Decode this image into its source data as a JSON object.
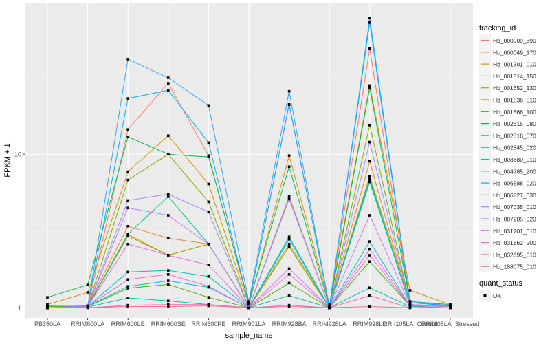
{
  "chart_data": {
    "type": "line",
    "title": "",
    "xlabel": "sample_name",
    "ylabel": "FPKM + 1",
    "yscale": "log10",
    "ylim": [
      0.86,
      97
    ],
    "yticks": [
      1,
      10
    ],
    "ytick_labels": [
      "1",
      "10"
    ],
    "grid": true,
    "legend_position": "right",
    "categories": [
      "PB350LA",
      "RRIM600LA",
      "RRIM600LE",
      "RRIM600SE",
      "RRIM600PE",
      "RRIM901LA",
      "RRIM928BA",
      "RRIM928LA",
      "RRIM928LE",
      "RRII105LA_Control",
      "RRII105LA_Stressed"
    ],
    "legend_title": "tracking_id",
    "shape_legend_title": "quant_status",
    "shape_legend_items": [
      "OK"
    ],
    "series": [
      {
        "name": "Hb_000009_390",
        "color": "#F8766D",
        "values": [
          1.0,
          1.02,
          14.5,
          29,
          9.8,
          1.05,
          21,
          1.02,
          49,
          1.05,
          1.03
        ]
      },
      {
        "name": "Hb_000049_170",
        "color": "#EA8331",
        "values": [
          1.02,
          1.03,
          3.4,
          2.84,
          2.6,
          1.0,
          2.5,
          1.0,
          9.0,
          1.05,
          1.02
        ]
      },
      {
        "name": "Hb_001301_010",
        "color": "#D89000",
        "values": [
          1.05,
          1.26,
          7.7,
          13.2,
          6.4,
          1.05,
          9.8,
          1.05,
          28,
          1.3,
          1.05
        ]
      },
      {
        "name": "Hb_001514_150",
        "color": "#C09B00",
        "values": [
          1.03,
          1.02,
          3.0,
          2.2,
          2.6,
          1.0,
          2.6,
          1.0,
          7.2,
          1.1,
          1.03
        ]
      },
      {
        "name": "Hb_001652_130",
        "color": "#A3A500",
        "values": [
          1.02,
          1.02,
          2.93,
          2.2,
          2.6,
          1.0,
          2.5,
          1.0,
          6.8,
          1.05,
          1.02
        ]
      },
      {
        "name": "Hb_001836_010",
        "color": "#7CAE00",
        "values": [
          1.02,
          1.02,
          6.8,
          10,
          4.9,
          1.0,
          5.3,
          1.0,
          15.5,
          1.05,
          1.02
        ]
      },
      {
        "name": "Hb_001866_100",
        "color": "#39B600",
        "values": [
          1.0,
          1.02,
          1.34,
          1.42,
          1.17,
          1.0,
          1.45,
          1.0,
          2.0,
          1.03,
          1.02
        ]
      },
      {
        "name": "Hb_002615_080",
        "color": "#00BB4E",
        "values": [
          1.17,
          1.41,
          13,
          10,
          9.6,
          1.08,
          8.3,
          1.02,
          27,
          1.1,
          1.05
        ]
      },
      {
        "name": "Hb_002818_070",
        "color": "#00BF7D",
        "values": [
          1.0,
          1.02,
          3.02,
          5.3,
          2.6,
          1.0,
          2.8,
          1.0,
          6.9,
          1.05,
          1.02
        ]
      },
      {
        "name": "Hb_002845_020",
        "color": "#00C1A3",
        "values": [
          1.0,
          1.01,
          1.16,
          1.11,
          1.05,
          1.0,
          1.2,
          1.0,
          1.35,
          1.02,
          1.0
        ]
      },
      {
        "name": "Hb_003680_010",
        "color": "#00BFC4",
        "values": [
          1.0,
          1.02,
          1.71,
          1.75,
          1.6,
          1.0,
          2.9,
          1.0,
          2.7,
          1.03,
          1.02
        ]
      },
      {
        "name": "Hb_004785_200",
        "color": "#00BAE0",
        "values": [
          1.0,
          1.02,
          1.38,
          1.5,
          1.36,
          1.0,
          2.8,
          1.0,
          6.6,
          1.05,
          1.02
        ]
      },
      {
        "name": "Hb_006588_020",
        "color": "#00B0F6",
        "values": [
          1.0,
          1.03,
          23.1,
          26.1,
          11.9,
          1.05,
          21.3,
          1.02,
          72,
          1.08,
          1.03
        ]
      },
      {
        "name": "Hb_006827_030",
        "color": "#35A2FF",
        "values": [
          1.0,
          1.03,
          41.6,
          31.5,
          20.8,
          1.1,
          25.7,
          1.02,
          77,
          1.1,
          1.03
        ]
      },
      {
        "name": "Hb_007035_010",
        "color": "#9590FF",
        "values": [
          1.0,
          1.02,
          5.0,
          5.5,
          4.2,
          1.0,
          5.1,
          1.0,
          12,
          1.05,
          1.02
        ]
      },
      {
        "name": "Hb_007205_020",
        "color": "#C77CFF",
        "values": [
          1.0,
          1.02,
          4.47,
          4.0,
          2.6,
          1.0,
          5.2,
          1.0,
          4.0,
          1.05,
          1.02
        ]
      },
      {
        "name": "Hb_031201_010",
        "color": "#E76BF3",
        "values": [
          1.0,
          1.02,
          2.6,
          2.2,
          1.9,
          1.0,
          1.8,
          1.0,
          2.4,
          1.03,
          1.02
        ]
      },
      {
        "name": "Hb_031862_200",
        "color": "#FA62DB",
        "values": [
          1.0,
          1.02,
          1.53,
          1.65,
          1.38,
          1.0,
          1.65,
          1.0,
          2.2,
          1.03,
          1.02
        ]
      },
      {
        "name": "Hb_032695_010",
        "color": "#FF62BC",
        "values": [
          1.0,
          1.0,
          1.04,
          1.05,
          1.05,
          1.0,
          1.04,
          1.0,
          1.2,
          1.0,
          1.0
        ]
      },
      {
        "name": "Hb_188075_010",
        "color": "#FF6C90",
        "values": [
          1.0,
          1.0,
          1.02,
          1.02,
          1.03,
          1.0,
          1.02,
          1.0,
          1.02,
          1.0,
          1.0
        ]
      }
    ]
  }
}
